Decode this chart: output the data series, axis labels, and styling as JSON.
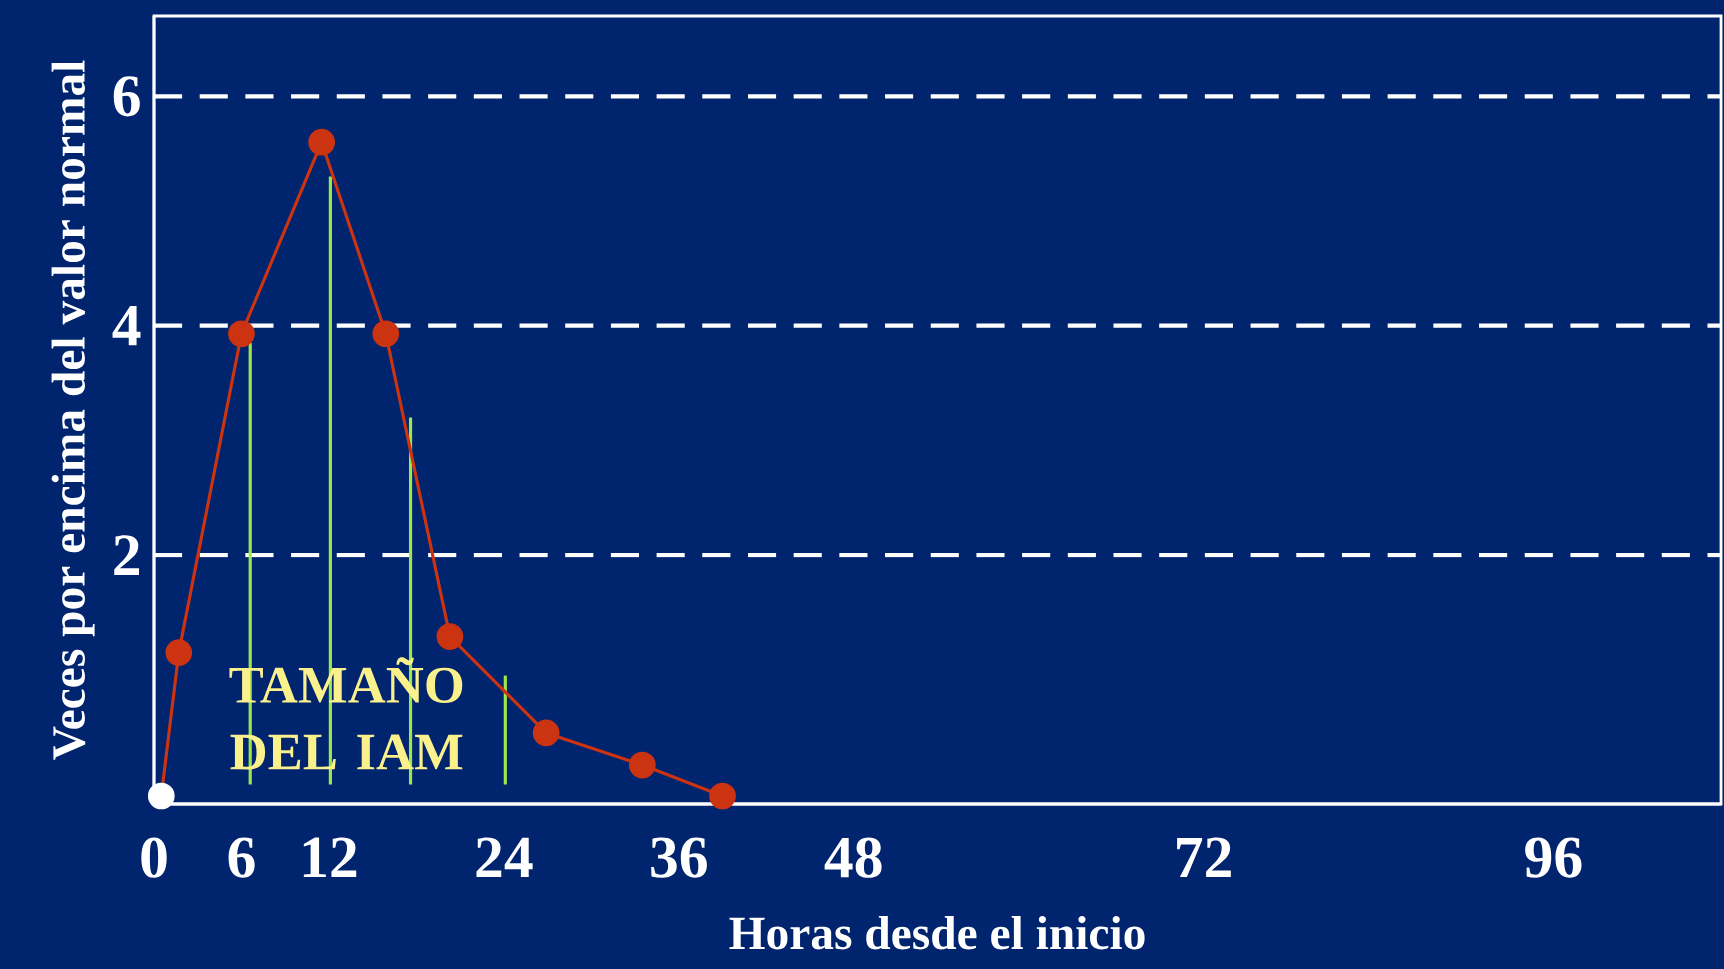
{
  "chart_data": {
    "type": "line",
    "xlabel": "Horas desde el inicio",
    "ylabel": "Veces por encima del valor normal",
    "series": [
      {
        "type": "bar",
        "color": "#9be84a",
        "x": [
          6.6,
          12.1,
          17.6,
          24.1
        ],
        "values": [
          3.85,
          5.3,
          3.2,
          0.95
        ]
      },
      {
        "color": "#cc3311",
        "colors": [
          "#ffffff",
          "#cc3311",
          "#cc3311",
          "#cc3311",
          "#cc3311",
          "#cc3311",
          "#cc3311",
          "#cc3311",
          "#cc3311"
        ],
        "x": [
          0.5,
          1.7,
          6.0,
          11.5,
          15.9,
          20.3,
          26.9,
          33.5,
          39.0
        ],
        "values": [
          -0.1,
          1.15,
          3.93,
          5.6,
          3.93,
          1.29,
          0.45,
          0.17,
          -0.1
        ]
      }
    ],
    "xlim": [
      0,
      107.5
    ],
    "ylim": [
      -0.17,
      6.7
    ],
    "xticks": [
      0,
      6,
      12,
      24,
      36,
      48,
      72,
      96
    ],
    "yticks": [
      2,
      4,
      6
    ],
    "grid": "y",
    "marker": "circle",
    "annotations": [
      "TAMAÑO DEL IAM"
    ]
  }
}
